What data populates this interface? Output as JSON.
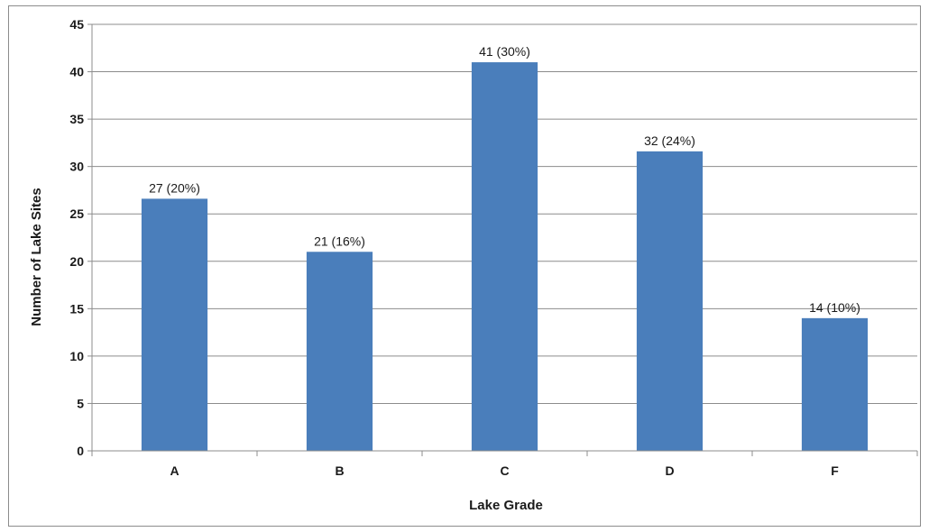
{
  "chart_data": {
    "type": "bar",
    "categories": [
      "A",
      "B",
      "C",
      "D",
      "F"
    ],
    "values": [
      26.6,
      21,
      41,
      31.6,
      14
    ],
    "data_labels": [
      "27 (20%)",
      "21 (16%)",
      "41 (30%)",
      "32 (24%)",
      "14 (10%)"
    ],
    "title": "",
    "xlabel": "Lake Grade",
    "ylabel": "Number of Lake Sites",
    "ylim": [
      0,
      45
    ],
    "yticks": [
      0,
      5,
      10,
      15,
      20,
      25,
      30,
      35,
      40,
      45
    ],
    "grid": "horizontal",
    "legend": "none",
    "bar_color": "#4a7ebb",
    "grid_color": "#8c8c8c"
  }
}
